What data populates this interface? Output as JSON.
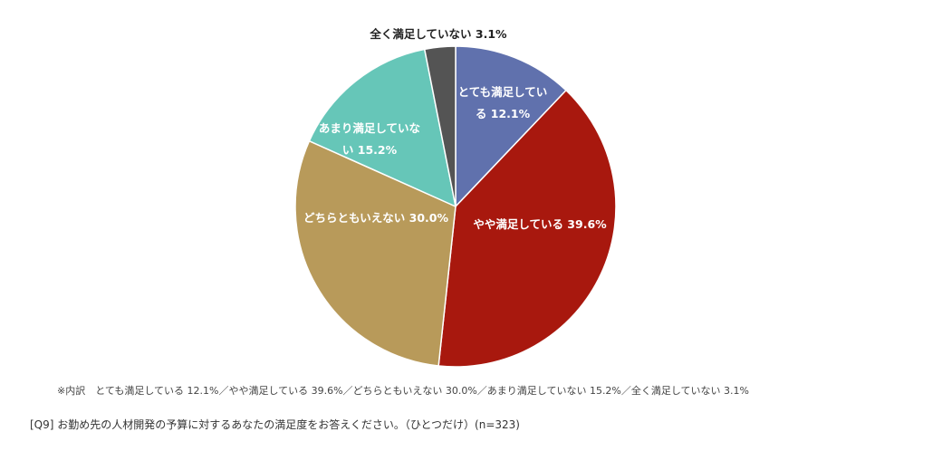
{
  "chart_data": {
    "type": "pie",
    "title": "",
    "categories": [
      "とても満足している",
      "やや満足している",
      "どちらともいえない",
      "あまり満足していない",
      "全く満足していない"
    ],
    "values": [
      12.1,
      39.6,
      30.0,
      15.2,
      3.1
    ],
    "unit": "%",
    "data_labels": [
      [
        "とても満足してい",
        "る 12.1%"
      ],
      [
        "やや満足している 39.6%"
      ],
      [
        "どちらともいえない 30.0%"
      ],
      [
        "あまり満足していな",
        "い 15.2%"
      ],
      [
        "全く満足していない 3.1%"
      ]
    ],
    "colors": [
      "#6071ad",
      "#a8180e",
      "#b89a5a",
      "#66c6b8",
      "#545454"
    ],
    "start": "12 o'clock",
    "direction": "clockwise"
  },
  "footnote": {
    "breakdown": "※内訳　とても満足している 12.1%／やや満足している 39.6%／どちらともいえない 30.0%／あまり満足していない 15.2%／全く満足していない 3.1%",
    "question": "[Q9] お勤め先の人材開発の予算に対するあなたの満足度をお答えください。（ひとつだけ）(n=323)"
  }
}
